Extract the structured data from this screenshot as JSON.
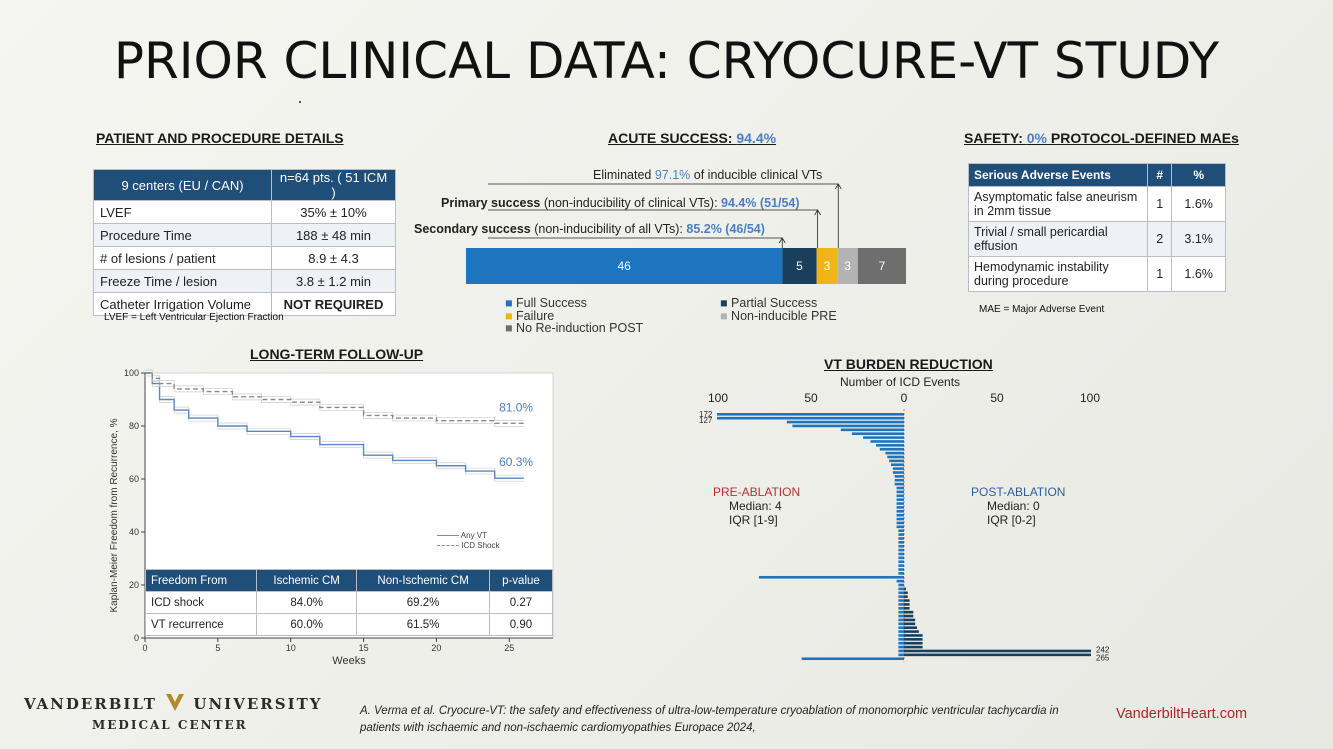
{
  "title": "PRIOR CLINICAL DATA: CRYOCURE-VT STUDY",
  "patient": {
    "heading": "PATIENT AND PROCEDURE DETAILS",
    "header": [
      "9 centers (EU / CAN)",
      "n=64 pts. ( 51 ICM )"
    ],
    "rows": [
      [
        "LVEF",
        "35% ± 10%"
      ],
      [
        "Procedure Time",
        "188 ± 48 min"
      ],
      [
        "# of lesions / patient",
        "8.9 ± 4.3"
      ],
      [
        "Freeze Time / lesion",
        "3.8 ± 1.2 min"
      ],
      [
        "Catheter Irrigation Volume",
        "NOT REQUIRED"
      ]
    ],
    "footnote": "LVEF = Left Ventricular Ejection Fraction"
  },
  "acute": {
    "heading_prefix": "ACUTE SUCCESS: ",
    "heading_value": "94.4%",
    "eliminated": {
      "pre": "Eliminated ",
      "val": "97.1%",
      "post": " of inducible clinical VTs"
    },
    "primary": {
      "pre": "Primary success",
      "mid": " (non-inducibility of clinical VTs): ",
      "val": "94.4% (51/54)"
    },
    "secondary": {
      "pre": "Secondary success",
      "mid": " (non-inducibility of all VTs): ",
      "val": "85.2% (46/54)"
    },
    "legend": [
      "Full Success",
      "Partial Success",
      "Failure",
      "Non-inducible PRE",
      "No Re-induction POST"
    ]
  },
  "safety": {
    "heading_prefix": "SAFETY: ",
    "heading_value": "0%",
    "heading_suffix": " PROTOCOL-DEFINED MAEs",
    "header": [
      "Serious Adverse Events",
      "#",
      "%"
    ],
    "rows": [
      [
        "Asymptomatic false aneurism in 2mm tissue",
        "1",
        "1.6%"
      ],
      [
        "Trivial / small pericardial effusion",
        "2",
        "3.1%"
      ],
      [
        "Hemodynamic instability during procedure",
        "1",
        "1.6%"
      ]
    ],
    "footnote": "MAE = Major Adverse Event"
  },
  "longterm": {
    "heading": "LONG-TERM FOLLOW-UP",
    "legend": [
      "Any VT",
      "ICD Shock"
    ],
    "table_header": [
      "Freedom From",
      "Ischemic CM",
      "Non-Ischemic CM",
      "p-value"
    ],
    "table_rows": [
      [
        "ICD shock",
        "84.0%",
        "69.2%",
        "0.27"
      ],
      [
        "VT recurrence",
        "60.0%",
        "61.5%",
        "0.90"
      ]
    ]
  },
  "burden": {
    "heading": "VT BURDEN REDUCTION",
    "axis_title": "Number of ICD Events",
    "pre_label": "PRE-ABLATION",
    "pre_median": "Median: 4",
    "pre_iqr": "IQR [1-9]",
    "post_label": "POST-ABLATION",
    "post_median": "Median: 0",
    "post_iqr": "IQR [0-2]"
  },
  "footer": {
    "logo_top_left": "VANDERBILT",
    "logo_top_right": "UNIVERSITY",
    "logo_bottom": "MEDICAL CENTER",
    "reference": "A. Verma et al. Cryocure-VT: the safety and effectiveness  of ultra-low-temperature cryoablation of  monomorphic ventricular tachycardia in  patients with ischaemic and non-ischaemic  cardiomyopathies Europace 2024,",
    "website": "VanderbiltHeart.com"
  },
  "colors": {
    "navy": "#1f4e79",
    "accent_blue": "#4a7fc1",
    "bar_blue": "#1f74c0",
    "failure": "#f2b318",
    "nonind": "#b3b3b3",
    "noreind": "#6e6e6e",
    "partial": "#1a3f5c",
    "website_red": "#a6282c"
  },
  "chart_data": [
    {
      "type": "bar",
      "orientation": "horizontal-stacked",
      "title": "ACUTE SUCCESS: 94.4%",
      "categories": [
        "Full Success",
        "Partial Success",
        "Failure",
        "Non-inducible PRE",
        "No Re-induction POST"
      ],
      "values": [
        46,
        5,
        3,
        3,
        7
      ],
      "total": 64
    },
    {
      "type": "line",
      "title": "LONG-TERM FOLLOW-UP",
      "xlabel": "Weeks",
      "ylabel": "Kaplan-Meier Freedom from Recurrence, %",
      "xlim": [
        0,
        28
      ],
      "ylim": [
        0,
        100
      ],
      "xticks": [
        0,
        5,
        10,
        15,
        20,
        25
      ],
      "yticks": [
        0,
        20,
        40,
        60,
        80,
        100
      ],
      "series": [
        {
          "name": "Any VT",
          "x": [
            0,
            0.5,
            1,
            2,
            3,
            5,
            7,
            10,
            12,
            15,
            17,
            20,
            22,
            24,
            26
          ],
          "y": [
            100,
            96,
            90,
            86,
            83,
            80,
            78,
            76,
            73,
            69,
            67,
            65,
            63,
            60.3,
            60.3
          ],
          "end_label": "60.3%"
        },
        {
          "name": "ICD Shock",
          "x": [
            0,
            0.5,
            1,
            2,
            4,
            6,
            8,
            10,
            12,
            15,
            17,
            20,
            24,
            26
          ],
          "y": [
            100,
            98,
            96,
            94,
            93,
            91,
            90,
            89,
            87,
            84,
            83,
            82,
            81,
            81
          ],
          "end_label": "81.0%"
        }
      ]
    },
    {
      "type": "bar",
      "orientation": "horizontal-diverging",
      "title": "VT BURDEN REDUCTION",
      "xlabel": "Number of ICD Events",
      "xticks": [
        100,
        50,
        0,
        50,
        100
      ],
      "annotations": [
        "172",
        "127",
        "242",
        "265"
      ],
      "pre_ablation": [
        172,
        127,
        63,
        60,
        34,
        28,
        22,
        18,
        15,
        13,
        10,
        9,
        8,
        7,
        6,
        6,
        5,
        5,
        5,
        4,
        4,
        4,
        4,
        4,
        4,
        4,
        4,
        4,
        4,
        4,
        3,
        3,
        3,
        3,
        3,
        3,
        3,
        3,
        3,
        3,
        3,
        3,
        78,
        4,
        3,
        3,
        3,
        3,
        3,
        3,
        3,
        3,
        3,
        3,
        3,
        3,
        3,
        3,
        3,
        3,
        3,
        3,
        3,
        55
      ],
      "post_ablation": [
        0,
        0,
        0,
        0,
        0,
        0,
        0,
        0,
        0,
        0,
        0,
        0,
        0,
        0,
        0,
        0,
        0,
        0,
        0,
        0,
        0,
        0,
        0,
        0,
        0,
        0,
        0,
        0,
        0,
        0,
        0,
        0,
        0,
        0,
        0,
        0,
        0,
        0,
        0,
        0,
        0,
        0,
        0,
        0,
        0,
        1,
        2,
        2,
        3,
        3,
        3,
        5,
        5,
        6,
        6,
        7,
        8,
        10,
        10,
        10,
        10,
        242,
        265,
        0
      ]
    }
  ]
}
